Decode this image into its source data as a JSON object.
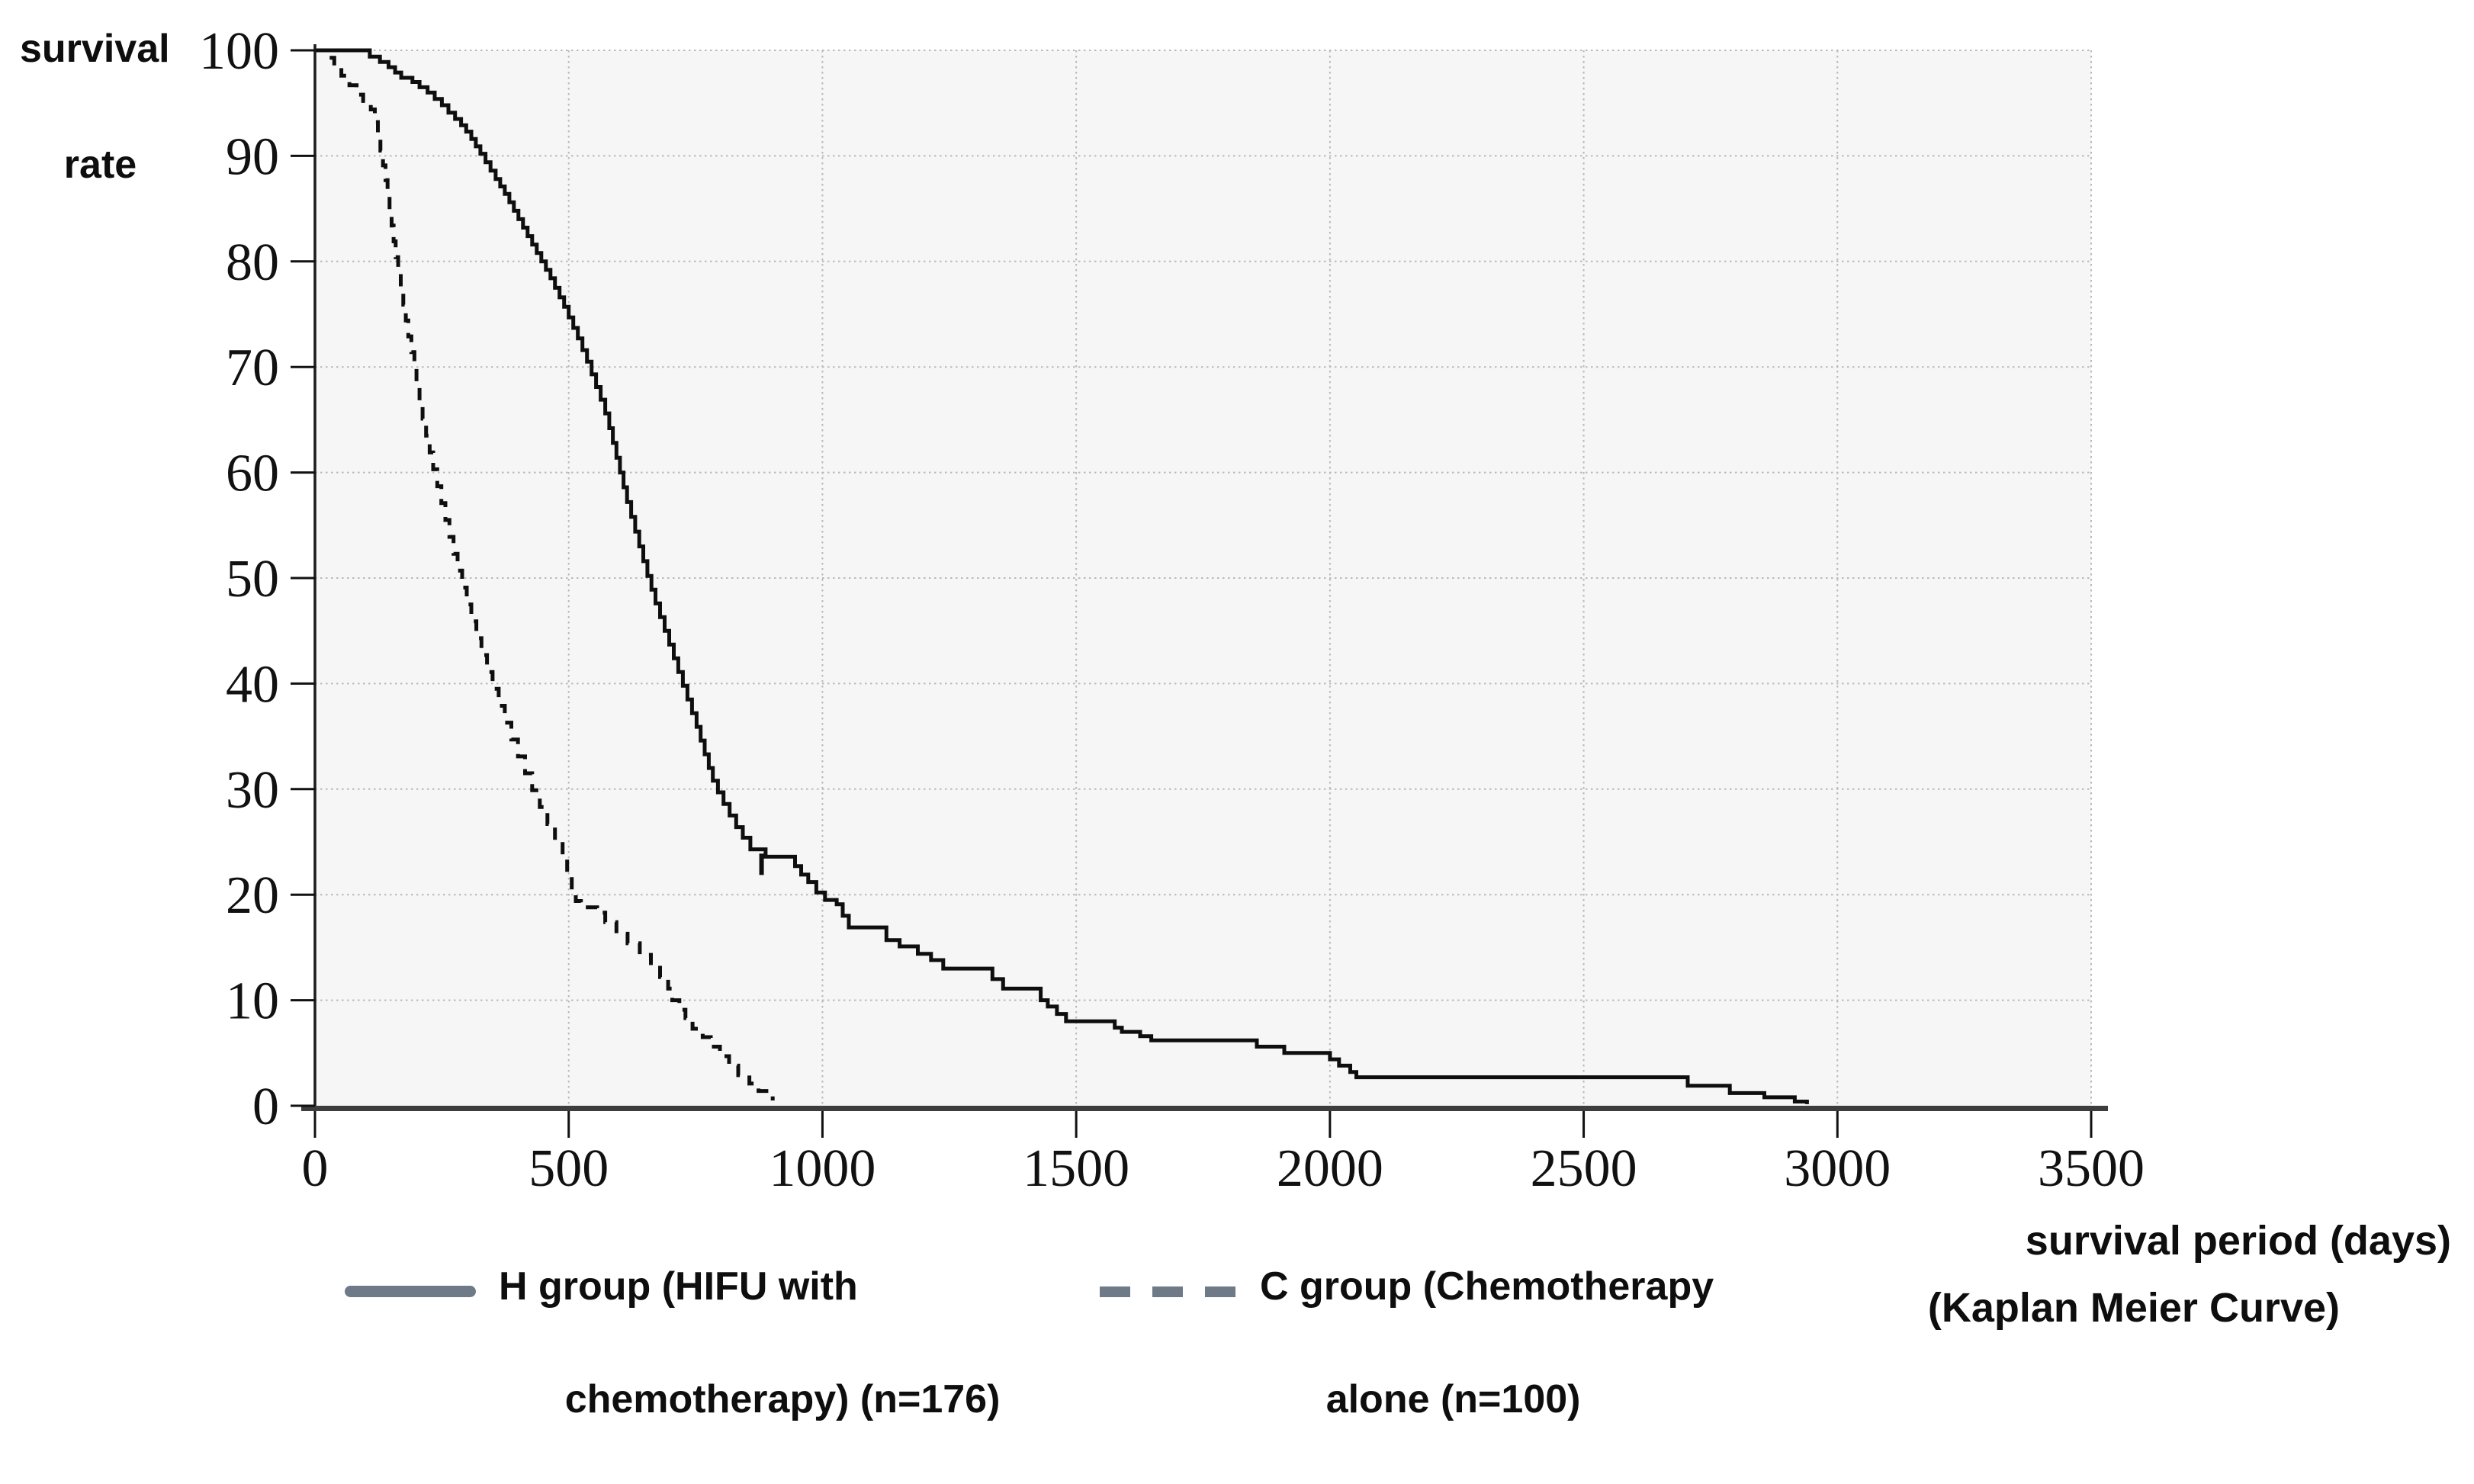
{
  "y_axis": {
    "title_line1": "survival",
    "title_line2": "rate"
  },
  "x_axis": {
    "title": "survival period (days)",
    "subtitle": "(Kaplan Meier Curve)"
  },
  "legend": [
    {
      "swatch": "solid-gray-line",
      "label_line1": "H group (HIFU with",
      "label_line2": "chemotherapy) (n=176)"
    },
    {
      "swatch": "dashed-gray-line",
      "label_line1": "C group (Chemotherapy",
      "label_line2": "alone (n=100)"
    }
  ],
  "colors": {
    "curve": "#0e0e0e",
    "legend_swatch": "#6e7a87",
    "gridline": "#b9b9b9",
    "x_axis_line": "#3d3d3d",
    "y_axis_line": "#1a1a1a",
    "plot_background": "#f6f6f6",
    "page_background": "#ffffff"
  },
  "chart_data": {
    "type": "line",
    "subtype": "kaplan-meier-step",
    "title": "",
    "xlabel": "survival period (days)",
    "ylabel": "survival rate",
    "xlim": [
      0,
      3500
    ],
    "ylim": [
      0,
      100
    ],
    "x_ticks": [
      0,
      500,
      1000,
      1500,
      2000,
      2500,
      3000,
      3500
    ],
    "y_ticks": [
      0,
      10,
      20,
      30,
      40,
      50,
      60,
      70,
      80,
      90,
      100
    ],
    "grid": true,
    "legend_position": "bottom",
    "series": [
      {
        "name": "H group (HIFU with chemotherapy) (n=176)",
        "style": "solid",
        "color": "#0e0e0e",
        "censor_marks": [
          [
            880,
            23.6
          ]
        ],
        "points": [
          [
            0,
            100
          ],
          [
            95,
            100
          ],
          [
            108,
            99.4
          ],
          [
            128,
            98.9
          ],
          [
            145,
            98.4
          ],
          [
            158,
            97.9
          ],
          [
            170,
            97.4
          ],
          [
            192,
            97.0
          ],
          [
            206,
            96.5
          ],
          [
            222,
            96.0
          ],
          [
            236,
            95.4
          ],
          [
            250,
            94.8
          ],
          [
            263,
            94.1
          ],
          [
            276,
            93.5
          ],
          [
            288,
            92.9
          ],
          [
            298,
            92.3
          ],
          [
            308,
            91.6
          ],
          [
            317,
            90.9
          ],
          [
            326,
            90.2
          ],
          [
            336,
            89.4
          ],
          [
            346,
            88.6
          ],
          [
            356,
            87.8
          ],
          [
            365,
            87.1
          ],
          [
            374,
            86.4
          ],
          [
            383,
            85.6
          ],
          [
            392,
            84.8
          ],
          [
            401,
            84.0
          ],
          [
            410,
            83.2
          ],
          [
            419,
            82.4
          ],
          [
            428,
            81.6
          ],
          [
            437,
            80.8
          ],
          [
            446,
            80.0
          ],
          [
            455,
            79.2
          ],
          [
            464,
            78.4
          ],
          [
            473,
            77.5
          ],
          [
            482,
            76.6
          ],
          [
            491,
            75.7
          ],
          [
            500,
            74.7
          ],
          [
            509,
            73.7
          ],
          [
            518,
            72.7
          ],
          [
            527,
            71.6
          ],
          [
            536,
            70.5
          ],
          [
            545,
            69.3
          ],
          [
            554,
            68.1
          ],
          [
            563,
            66.9
          ],
          [
            572,
            65.6
          ],
          [
            580,
            64.2
          ],
          [
            587,
            62.8
          ],
          [
            594,
            61.4
          ],
          [
            601,
            60.0
          ],
          [
            608,
            58.6
          ],
          [
            615,
            57.2
          ],
          [
            623,
            55.8
          ],
          [
            631,
            54.4
          ],
          [
            639,
            53.0
          ],
          [
            647,
            51.6
          ],
          [
            655,
            50.2
          ],
          [
            663,
            48.9
          ],
          [
            671,
            47.6
          ],
          [
            680,
            46.3
          ],
          [
            689,
            45.0
          ],
          [
            698,
            43.7
          ],
          [
            707,
            42.4
          ],
          [
            716,
            41.1
          ],
          [
            725,
            39.8
          ],
          [
            734,
            38.5
          ],
          [
            743,
            37.2
          ],
          [
            752,
            35.9
          ],
          [
            760,
            34.6
          ],
          [
            768,
            33.3
          ],
          [
            776,
            32.0
          ],
          [
            784,
            30.8
          ],
          [
            794,
            29.7
          ],
          [
            805,
            28.6
          ],
          [
            817,
            27.5
          ],
          [
            830,
            26.4
          ],
          [
            843,
            25.4
          ],
          [
            858,
            24.3
          ],
          [
            888,
            23.6
          ],
          [
            946,
            22.7
          ],
          [
            958,
            21.9
          ],
          [
            972,
            21.2
          ],
          [
            988,
            20.2
          ],
          [
            1005,
            19.5
          ],
          [
            1028,
            19.1
          ],
          [
            1040,
            18.0
          ],
          [
            1052,
            16.9
          ],
          [
            1126,
            15.7
          ],
          [
            1152,
            15.1
          ],
          [
            1188,
            14.4
          ],
          [
            1214,
            13.8
          ],
          [
            1238,
            13.0
          ],
          [
            1335,
            12.0
          ],
          [
            1356,
            11.1
          ],
          [
            1430,
            10.0
          ],
          [
            1444,
            9.4
          ],
          [
            1462,
            8.7
          ],
          [
            1480,
            8.0
          ],
          [
            1576,
            7.4
          ],
          [
            1590,
            7.0
          ],
          [
            1626,
            6.6
          ],
          [
            1648,
            6.2
          ],
          [
            1856,
            5.6
          ],
          [
            1910,
            5.0
          ],
          [
            2000,
            4.4
          ],
          [
            2018,
            3.8
          ],
          [
            2040,
            3.2
          ],
          [
            2052,
            2.7
          ],
          [
            2705,
            1.9
          ],
          [
            2788,
            1.2
          ],
          [
            2856,
            0.8
          ],
          [
            2916,
            0.4
          ],
          [
            2940,
            0.15
          ]
        ]
      },
      {
        "name": "C group (Chemotherapy alone (n=100)",
        "style": "dashed",
        "color": "#0e0e0e",
        "censor_marks": [],
        "points": [
          [
            0,
            100
          ],
          [
            28,
            99.3
          ],
          [
            38,
            98.4
          ],
          [
            52,
            97.6
          ],
          [
            68,
            96.7
          ],
          [
            82,
            95.8
          ],
          [
            95,
            95.2
          ],
          [
            110,
            94.4
          ],
          [
            118,
            93.2
          ],
          [
            124,
            91.9
          ],
          [
            129,
            90.5
          ],
          [
            134,
            89.1
          ],
          [
            139,
            87.7
          ],
          [
            143,
            86.3
          ],
          [
            147,
            84.9
          ],
          [
            151,
            83.4
          ],
          [
            155,
            81.9
          ],
          [
            159,
            80.4
          ],
          [
            164,
            78.9
          ],
          [
            169,
            77.4
          ],
          [
            174,
            75.9
          ],
          [
            179,
            74.4
          ],
          [
            184,
            72.9
          ],
          [
            190,
            71.4
          ],
          [
            196,
            69.9
          ],
          [
            200,
            68.3
          ],
          [
            206,
            66.7
          ],
          [
            212,
            65.1
          ],
          [
            219,
            63.5
          ],
          [
            226,
            61.9
          ],
          [
            233,
            60.3
          ],
          [
            241,
            58.7
          ],
          [
            249,
            57.1
          ],
          [
            257,
            55.5
          ],
          [
            265,
            53.9
          ],
          [
            273,
            52.3
          ],
          [
            281,
            50.7
          ],
          [
            290,
            49.1
          ],
          [
            299,
            47.5
          ],
          [
            308,
            45.9
          ],
          [
            318,
            44.3
          ],
          [
            328,
            42.7
          ],
          [
            339,
            41.1
          ],
          [
            350,
            39.5
          ],
          [
            362,
            37.9
          ],
          [
            374,
            36.3
          ],
          [
            387,
            34.7
          ],
          [
            400,
            33.1
          ],
          [
            414,
            31.5
          ],
          [
            428,
            29.9
          ],
          [
            443,
            28.3
          ],
          [
            458,
            26.7
          ],
          [
            473,
            25.1
          ],
          [
            488,
            23.5
          ],
          [
            497,
            22.0
          ],
          [
            506,
            20.4
          ],
          [
            514,
            19.4
          ],
          [
            524,
            18.8
          ],
          [
            556,
            18.3
          ],
          [
            572,
            17.4
          ],
          [
            594,
            16.3
          ],
          [
            616,
            15.4
          ],
          [
            640,
            14.3
          ],
          [
            662,
            13.3
          ],
          [
            680,
            12.2
          ],
          [
            696,
            11.1
          ],
          [
            704,
            10.0
          ],
          [
            718,
            9.1
          ],
          [
            730,
            8.3
          ],
          [
            744,
            7.3
          ],
          [
            764,
            6.5
          ],
          [
            780,
            5.6
          ],
          [
            798,
            4.7
          ],
          [
            816,
            3.8
          ],
          [
            834,
            2.9
          ],
          [
            856,
            2.1
          ],
          [
            874,
            1.4
          ],
          [
            894,
            0.7
          ],
          [
            902,
            0.5
          ]
        ]
      }
    ]
  }
}
